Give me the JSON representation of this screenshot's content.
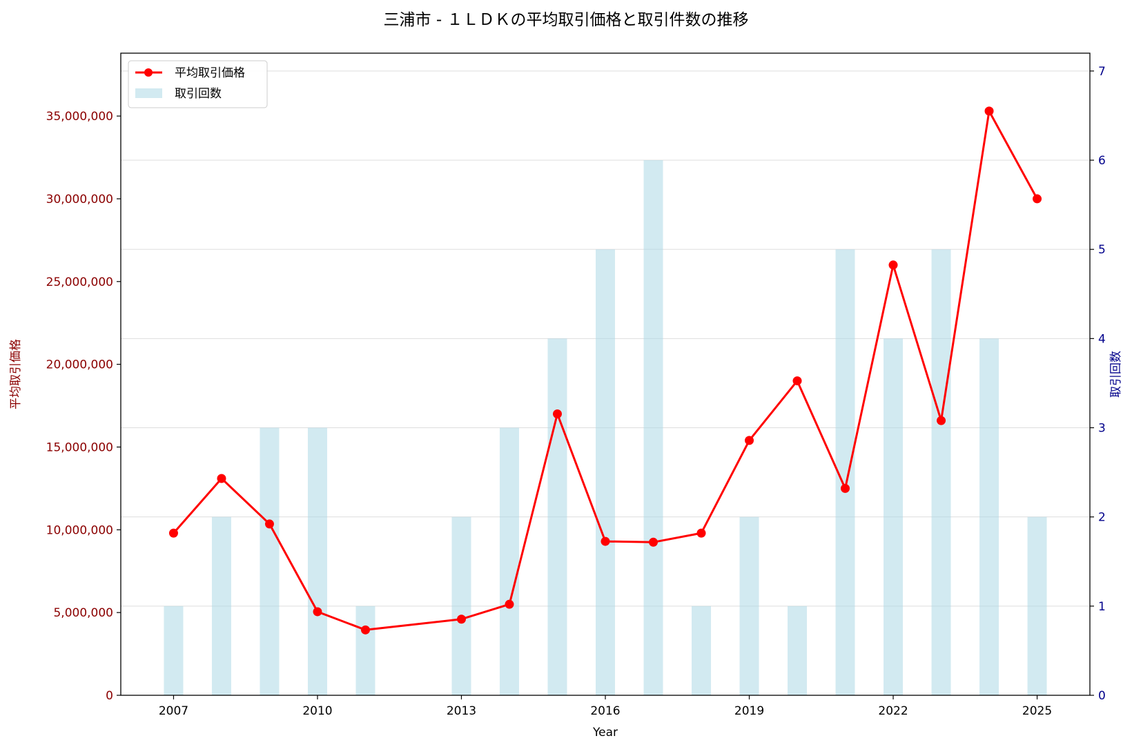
{
  "chart_data": {
    "type": "bar+line",
    "title": "三浦市 - １ＬＤＫの平均取引価格と取引件数の推移",
    "xlabel": "Year",
    "ylabel_left": "平均取引価格",
    "ylabel_right": "取引回数",
    "xlim": [
      2005.9,
      2026.1
    ],
    "ylim_left": [
      0,
      38800000
    ],
    "ylim_right": [
      0,
      7.2
    ],
    "x_ticks": [
      "2007",
      "2010",
      "2013",
      "2016",
      "2019",
      "2022",
      "2025"
    ],
    "y_left_ticks": [
      "0",
      "5,000,000",
      "10,000,000",
      "15,000,000",
      "20,000,000",
      "25,000,000",
      "30,000,000",
      "35,000,000"
    ],
    "y_right_ticks": [
      "0",
      "1",
      "2",
      "3",
      "4",
      "5",
      "6",
      "7"
    ],
    "grid": "horizontal (right axis)",
    "legend_position": "upper-left",
    "series": [
      {
        "name": "平均取引価格",
        "kind": "line",
        "axis": "left",
        "color": "#ff0000",
        "x": [
          2007,
          2008,
          2009,
          2010,
          2011,
          2013,
          2014,
          2015,
          2016,
          2017,
          2018,
          2019,
          2020,
          2021,
          2022,
          2023,
          2024,
          2025
        ],
        "values": [
          9800000,
          13100000,
          10350000,
          5050000,
          3950000,
          4600000,
          5500000,
          17000000,
          9300000,
          9250000,
          9800000,
          15400000,
          19000000,
          12500000,
          26000000,
          16600000,
          35300000,
          30000000
        ]
      },
      {
        "name": "取引回数",
        "kind": "bar",
        "axis": "right",
        "color": "#add8e6",
        "x": [
          2007,
          2008,
          2009,
          2010,
          2011,
          2013,
          2014,
          2015,
          2016,
          2017,
          2018,
          2019,
          2020,
          2021,
          2022,
          2023,
          2024,
          2025
        ],
        "values": [
          1,
          2,
          3,
          3,
          1,
          2,
          3,
          4,
          5,
          6,
          1,
          2,
          1,
          5,
          4,
          5,
          4,
          2
        ]
      }
    ]
  }
}
